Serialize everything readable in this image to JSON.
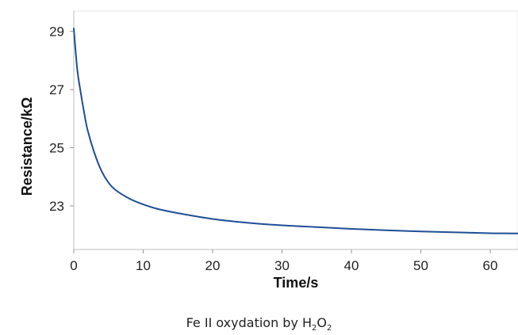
{
  "chart_data": {
    "type": "line",
    "title": "",
    "xlabel": "Time/s",
    "ylabel": "Resistance/kΩ",
    "xlim": [
      0,
      64
    ],
    "ylim": [
      21.5,
      29.7
    ],
    "xticks": [
      0,
      10,
      20,
      30,
      40,
      50,
      60
    ],
    "yticks": [
      23,
      25,
      27,
      29
    ],
    "grid": false,
    "line_color": "#1f4e96",
    "series": [
      {
        "x": [
          0,
          0.5,
          1,
          1.5,
          2,
          3,
          4,
          5,
          6,
          8,
          10,
          12,
          15,
          20,
          25,
          30,
          35,
          40,
          45,
          50,
          55,
          60,
          64
        ],
        "values": [
          29.1,
          27.7,
          26.9,
          26.2,
          25.6,
          24.8,
          24.2,
          23.8,
          23.55,
          23.25,
          23.05,
          22.9,
          22.75,
          22.55,
          22.42,
          22.33,
          22.27,
          22.21,
          22.16,
          22.12,
          22.09,
          22.06,
          22.05
        ]
      }
    ]
  },
  "caption": {
    "main": "Fe II oxydation by H",
    "sub1": "2",
    "mid": "O",
    "sub2": "2"
  }
}
